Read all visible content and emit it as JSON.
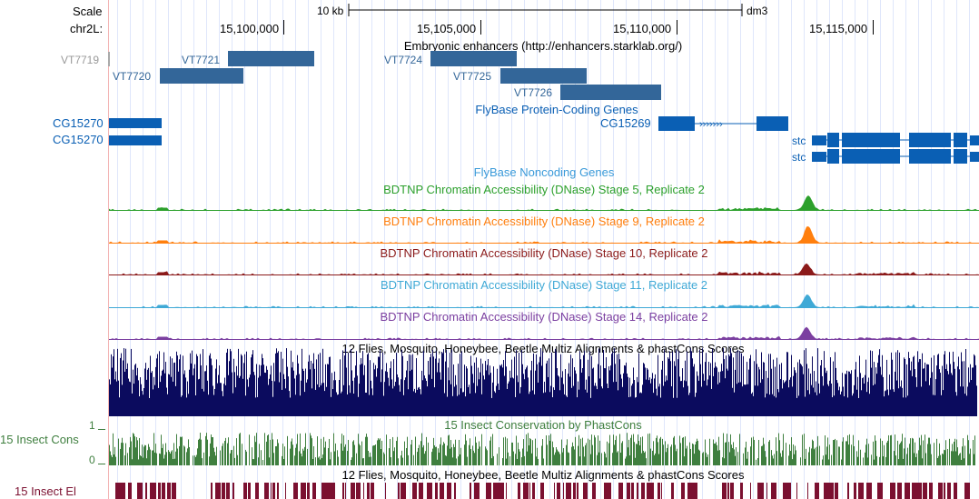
{
  "scale": {
    "label": "Scale",
    "bar_text": "10 kb",
    "assembly": "dm3"
  },
  "ruler": {
    "chrom_label": "chr2L:",
    "ticks": [
      "15,100,000",
      "15,105,000",
      "15,110,000",
      "15,115,000"
    ]
  },
  "enhancers": {
    "title": "Embryonic enhancers (http://enhancers.starklab.org/)",
    "color": "#336699",
    "items": [
      "VT7719",
      "VT7720",
      "VT7721",
      "VT7724",
      "VT7725",
      "VT7726"
    ]
  },
  "protein_genes": {
    "title": "FlyBase Protein-Coding Genes",
    "color": "#0a5fb4",
    "genes": [
      "CG15270",
      "CG15270",
      "CG15269",
      "stc",
      "stc"
    ]
  },
  "noncoding": {
    "title": "FlyBase Noncoding Genes"
  },
  "dnase": [
    {
      "title": "BDTNP Chromatin Accessibility (DNase) Stage 5, Replicate 2",
      "color": "#2ca02c"
    },
    {
      "title": "BDTNP Chromatin Accessibility (DNase) Stage 9, Replicate 2",
      "color": "#ff7f0e"
    },
    {
      "title": "BDTNP Chromatin Accessibility (DNase) Stage 10, Replicate 2",
      "color": "#8b1a1a"
    },
    {
      "title": "BDTNP Chromatin Accessibility (DNase) Stage 11, Replicate 2",
      "color": "#3fa9d6"
    },
    {
      "title": "BDTNP Chromatin Accessibility (DNase) Stage 14, Replicate 2",
      "color": "#7b3fa0"
    }
  ],
  "multiz": {
    "title": "12 Flies, Mosquito, Honeybee, Beetle Multiz Alignments & phastCons Scores",
    "color": "#0b0b5e"
  },
  "insect_cons": {
    "title": "15 Insect Conservation by PhastCons",
    "side_label": "15 Insect Cons",
    "axis_max": "1",
    "axis_min": "0",
    "color": "#3f7f3f"
  },
  "insect_el": {
    "title": "12 Flies, Mosquito, Honeybee, Beetle Multiz Alignments & phastCons Scores",
    "side_label": "15 Insect El",
    "color": "#7b1030"
  }
}
